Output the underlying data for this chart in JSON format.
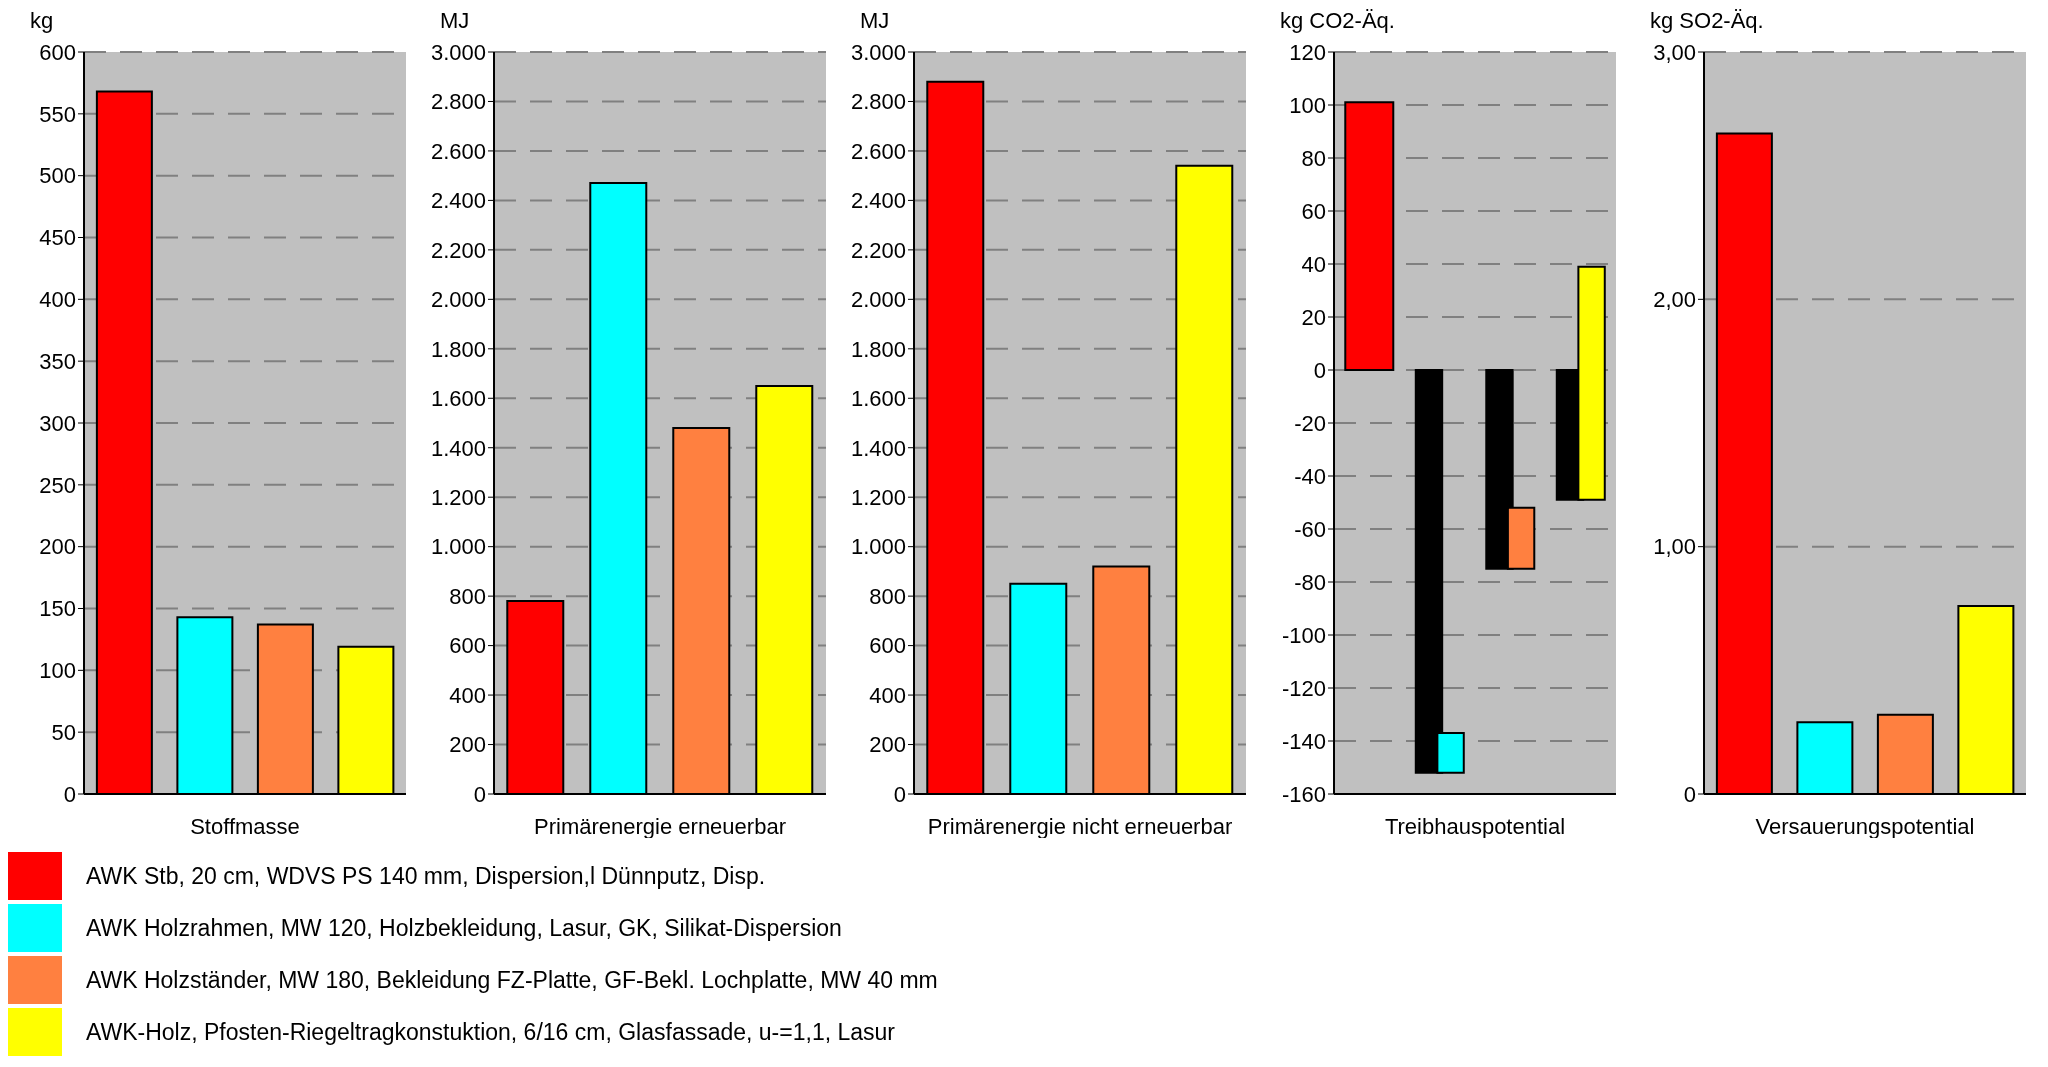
{
  "chart_data": [
    {
      "type": "bar",
      "ylabel": "kg",
      "xlabel": "Stoffmasse",
      "categories": [
        null,
        null,
        null,
        null
      ],
      "series": [
        {
          "name": "AWK Stb, 20 cm, WDVS PS 140 mm, Dispersion,l Dünnputz, Disp.",
          "color": "#ff0000",
          "values": [
            568,
            null,
            null,
            null
          ]
        },
        {
          "name": "AWK Holzrahmen, MW 120, Holzbekleidung, Lasur, GK, Silikat-Dispersion",
          "color": "#00ffff",
          "values": [
            null,
            143,
            null,
            null
          ]
        },
        {
          "name": "AWK Holzständer, MW 180, Bekleidung FZ-Platte, GF-Bekl. Lochplatte, MW 40 mm",
          "color": "#ff8040",
          "values": [
            null,
            null,
            137,
            null
          ]
        },
        {
          "name": "AWK-Holz, Pfosten-Riegeltragkonstuktion, 6/16 cm, Glasfassade, u-=1,1, Lasur",
          "color": "#ffff00",
          "values": [
            null,
            null,
            null,
            119
          ]
        }
      ],
      "ylim": [
        0,
        600
      ],
      "yticks": [
        0,
        50,
        100,
        150,
        200,
        250,
        300,
        350,
        400,
        450,
        500,
        550,
        600
      ],
      "grid": "y",
      "legend": "bottom"
    },
    {
      "type": "bar",
      "ylabel": "MJ",
      "xlabel": "Primärenergie erneuerbar",
      "categories": [
        null,
        null,
        null,
        null
      ],
      "series": [
        {
          "color": "#ff0000",
          "values": [
            780,
            null,
            null,
            null
          ]
        },
        {
          "color": "#00ffff",
          "values": [
            null,
            2470,
            null,
            null
          ]
        },
        {
          "color": "#ff8040",
          "values": [
            null,
            null,
            1480,
            null
          ]
        },
        {
          "color": "#ffff00",
          "values": [
            null,
            null,
            null,
            1650
          ]
        }
      ],
      "ylim": [
        0,
        3000
      ],
      "yticks": [
        0,
        200,
        400,
        600,
        800,
        {
          "value": 1000,
          "label": "1.000"
        },
        {
          "value": 1200,
          "label": "1.200"
        },
        {
          "value": 1400,
          "label": "1.400"
        },
        {
          "value": 1600,
          "label": "1.600"
        },
        {
          "value": 1800,
          "label": "1.800"
        },
        {
          "value": 2000,
          "label": "2.000"
        },
        {
          "value": 2200,
          "label": "2.200"
        },
        {
          "value": 2400,
          "label": "2.400"
        },
        {
          "value": 2600,
          "label": "2.600"
        },
        {
          "value": 2800,
          "label": "2.800"
        },
        {
          "value": 3000,
          "label": "3.000"
        }
      ],
      "grid": "y"
    },
    {
      "type": "bar",
      "ylabel": "MJ",
      "xlabel": "Primärenergie nicht erneuerbar",
      "categories": [
        null,
        null,
        null,
        null
      ],
      "series": [
        {
          "color": "#ff0000",
          "values": [
            2880,
            null,
            null,
            null
          ]
        },
        {
          "color": "#00ffff",
          "values": [
            null,
            850,
            null,
            null
          ]
        },
        {
          "color": "#ff8040",
          "values": [
            null,
            null,
            920,
            null
          ]
        },
        {
          "color": "#ffff00",
          "values": [
            null,
            null,
            null,
            2540
          ]
        }
      ],
      "ylim": [
        0,
        3000
      ],
      "yticks": [
        0,
        200,
        400,
        600,
        800,
        {
          "value": 1000,
          "label": "1.000"
        },
        {
          "value": 1200,
          "label": "1.200"
        },
        {
          "value": 1400,
          "label": "1.400"
        },
        {
          "value": 1600,
          "label": "1.600"
        },
        {
          "value": 1800,
          "label": "1.800"
        },
        {
          "value": 2000,
          "label": "2.000"
        },
        {
          "value": 2200,
          "label": "2.200"
        },
        {
          "value": 2400,
          "label": "2.400"
        },
        {
          "value": 2600,
          "label": "2.600"
        },
        {
          "value": 2800,
          "label": "2.800"
        },
        {
          "value": 3000,
          "label": "3.000"
        }
      ],
      "grid": "y"
    },
    {
      "type": "bar",
      "ylabel": "kg CO2-Äq.",
      "xlabel": "Treibhauspotential",
      "categories": [
        null,
        null,
        null,
        null
      ],
      "series": [
        {
          "color": "#000000",
          "values": [
            null,
            -152,
            -75,
            -49
          ]
        },
        {
          "color": "#ff0000",
          "values": [
            101,
            null,
            null,
            null
          ],
          "base": [
            0,
            null,
            null,
            null
          ]
        },
        {
          "color": "#00ffff",
          "values": [
            null,
            -15,
            null,
            null
          ],
          "base": [
            null,
            -137,
            null,
            null
          ]
        },
        {
          "color": "#ff8040",
          "values": [
            null,
            null,
            -23,
            null
          ],
          "base": [
            null,
            null,
            -52,
            null
          ]
        },
        {
          "color": "#ffff00",
          "values": [
            null,
            null,
            null,
            88
          ],
          "base": [
            null,
            null,
            null,
            -49
          ]
        }
      ],
      "ylim": [
        -160,
        120
      ],
      "yticks": [
        -160,
        -140,
        -120,
        -100,
        -80,
        -60,
        -40,
        -20,
        0,
        20,
        40,
        60,
        80,
        100,
        120
      ],
      "grid": "y"
    },
    {
      "type": "bar",
      "ylabel": "kg SO2-Äq.",
      "xlabel": "Versauerungspotential",
      "categories": [
        null,
        null,
        null,
        null
      ],
      "series": [
        {
          "color": "#ff0000",
          "values": [
            2.67,
            null,
            null,
            null
          ]
        },
        {
          "color": "#00ffff",
          "values": [
            null,
            0.29,
            null,
            null
          ]
        },
        {
          "color": "#ff8040",
          "values": [
            null,
            null,
            0.32,
            null
          ]
        },
        {
          "color": "#ffff00",
          "values": [
            null,
            null,
            null,
            0.76
          ]
        }
      ],
      "ylim": [
        0,
        3
      ],
      "yticks": [
        0,
        {
          "value": 1,
          "label": "1,00"
        },
        {
          "value": 2,
          "label": "2,00"
        },
        {
          "value": 3,
          "label": "3,00"
        }
      ],
      "grid": "y"
    }
  ]
}
